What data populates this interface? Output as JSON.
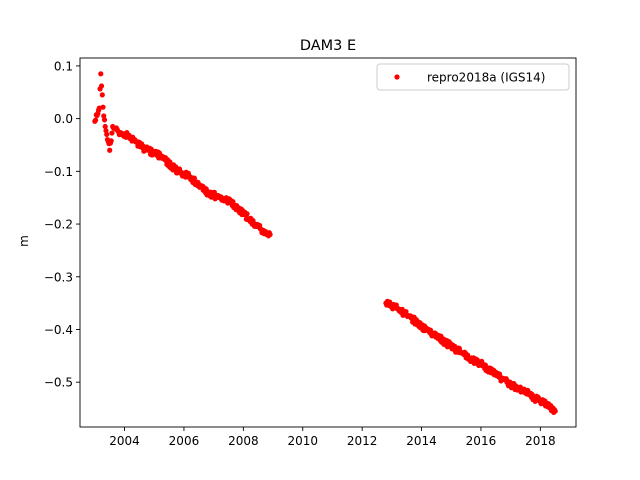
{
  "chart_data": {
    "type": "scatter",
    "title": "DAM3 E",
    "xlabel": "",
    "ylabel": "m",
    "xlim": [
      2002.5,
      2019.2
    ],
    "ylim": [
      -0.585,
      0.115
    ],
    "xticks": [
      2004,
      2006,
      2008,
      2010,
      2012,
      2014,
      2016,
      2018
    ],
    "xtick_labels": [
      "2004",
      "2006",
      "2008",
      "2010",
      "2012",
      "2014",
      "2016",
      "2018"
    ],
    "yticks": [
      0.1,
      0.0,
      -0.1,
      -0.2,
      -0.3,
      -0.4,
      -0.5
    ],
    "ytick_labels": [
      "0.1",
      "0.0",
      "−0.1",
      "−0.2",
      "−0.3",
      "−0.4",
      "−0.5"
    ],
    "grid": false,
    "legend_position": "upper right",
    "series": [
      {
        "name": "repro2018a (IGS14)",
        "color": "#ff0000",
        "marker": "circle",
        "x": [
          2003.0,
          2003.1,
          2003.15,
          2003.2,
          2003.25,
          2003.3,
          2003.35,
          2003.4,
          2003.5,
          2003.6,
          2003.7,
          2003.8,
          2004.0,
          2004.2,
          2004.4,
          2004.6,
          2004.8,
          2005.0,
          2005.2,
          2005.4,
          2005.6,
          2005.8,
          2006.0,
          2006.2,
          2006.4,
          2006.6,
          2006.8,
          2007.0,
          2007.2,
          2007.4,
          2007.6,
          2007.8,
          2008.0,
          2008.2,
          2008.4,
          2008.6,
          2008.8,
          2008.9,
          2012.8,
          2013.0,
          2013.2,
          2013.4,
          2013.6,
          2013.8,
          2014.0,
          2014.2,
          2014.4,
          2014.6,
          2014.8,
          2015.0,
          2015.2,
          2015.4,
          2015.6,
          2015.8,
          2016.0,
          2016.2,
          2016.4,
          2016.6,
          2016.8,
          2017.0,
          2017.2,
          2017.4,
          2017.6,
          2017.8,
          2018.0,
          2018.2,
          2018.4,
          2018.5
        ],
        "y": [
          -0.005,
          0.01,
          0.02,
          0.085,
          0.045,
          0.005,
          -0.015,
          -0.03,
          -0.06,
          -0.015,
          -0.02,
          -0.025,
          -0.03,
          -0.035,
          -0.045,
          -0.055,
          -0.06,
          -0.065,
          -0.07,
          -0.08,
          -0.09,
          -0.1,
          -0.105,
          -0.11,
          -0.12,
          -0.13,
          -0.14,
          -0.145,
          -0.15,
          -0.155,
          -0.16,
          -0.17,
          -0.18,
          -0.19,
          -0.2,
          -0.21,
          -0.22,
          -0.22,
          -0.35,
          -0.355,
          -0.36,
          -0.37,
          -0.375,
          -0.385,
          -0.395,
          -0.4,
          -0.41,
          -0.415,
          -0.425,
          -0.43,
          -0.44,
          -0.445,
          -0.455,
          -0.46,
          -0.465,
          -0.475,
          -0.48,
          -0.49,
          -0.495,
          -0.505,
          -0.51,
          -0.515,
          -0.52,
          -0.53,
          -0.535,
          -0.54,
          -0.55,
          -0.555
        ]
      }
    ]
  }
}
